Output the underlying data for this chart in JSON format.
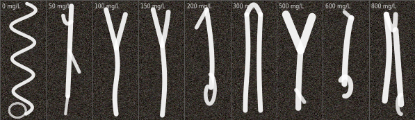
{
  "labels": [
    "0 mg/L",
    "50 mg/L",
    "100 mg/L",
    "150 mg/L",
    "200 mg/L",
    "300 mg/L",
    "500 mg/L",
    "600 mg/L",
    "800 mg/L"
  ],
  "n_panels": 9,
  "bg_color": "#2a2520",
  "label_color": "#dddddd",
  "label_fontsize": 5.5,
  "fig_width": 5.97,
  "fig_height": 1.73,
  "dpi": 100,
  "panel_sep_color": "#555555"
}
